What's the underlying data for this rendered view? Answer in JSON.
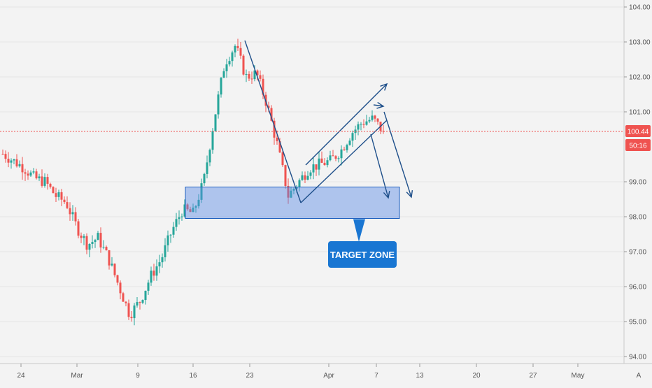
{
  "chart_data": {
    "type": "candlestick",
    "y_axis": {
      "ticks": [
        "104.00",
        "103.00",
        "102.00",
        "101.00",
        "99.00",
        "98.00",
        "97.00",
        "96.00",
        "95.00",
        "94.00"
      ],
      "tick_values": [
        104,
        103,
        102,
        101,
        99,
        98,
        97,
        96,
        95,
        94
      ],
      "range": [
        93.8,
        104.2
      ]
    },
    "x_axis": {
      "ticks": [
        "24",
        "Mar",
        "9",
        "16",
        "23",
        "Apr",
        "7",
        "13",
        "20",
        "27",
        "May"
      ]
    },
    "last_price": {
      "value": 100.44,
      "label": "100.44",
      "countdown": "50:16",
      "color": "#ef5350"
    },
    "up_color": "#26a69a",
    "down_color": "#ef5350",
    "series_points": [
      [
        0,
        99.8
      ],
      [
        1,
        99.6
      ],
      [
        2,
        99.4
      ],
      [
        3,
        99.1
      ],
      [
        4,
        99.0
      ],
      [
        5,
        98.6
      ],
      [
        6,
        98.4
      ],
      [
        7,
        97.7
      ],
      [
        8,
        97.2
      ],
      [
        9,
        97.4
      ],
      [
        10,
        96.8
      ],
      [
        11,
        96.0
      ],
      [
        12,
        95.2
      ],
      [
        13,
        95.6
      ],
      [
        14,
        96.3
      ],
      [
        15,
        96.8
      ],
      [
        16,
        97.6
      ],
      [
        17,
        98.2
      ],
      [
        18,
        98.1
      ],
      [
        19,
        99.0
      ],
      [
        20,
        100.8
      ],
      [
        21,
        102.4
      ],
      [
        22,
        102.9
      ],
      [
        23,
        102.0
      ],
      [
        24,
        102.1
      ],
      [
        25,
        101.2
      ],
      [
        26,
        100.0
      ],
      [
        27,
        98.6
      ],
      [
        28,
        99.0
      ],
      [
        29,
        99.4
      ],
      [
        30,
        99.5
      ],
      [
        31,
        99.6
      ],
      [
        32,
        99.9
      ],
      [
        33,
        100.4
      ],
      [
        34,
        100.7
      ],
      [
        35,
        100.8
      ],
      [
        36,
        100.44
      ]
    ],
    "target_zone": {
      "y_top": 98.85,
      "y_bottom": 97.95
    },
    "annotation": {
      "label": "TARGET ZONE",
      "color": "#1976d2"
    }
  },
  "footer": {
    "settings_label": "A"
  }
}
